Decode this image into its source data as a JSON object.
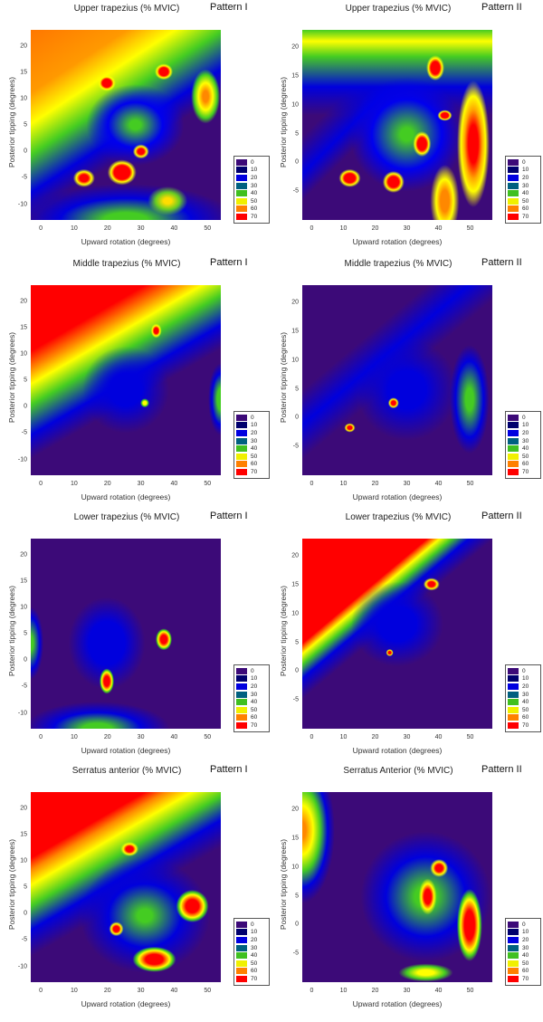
{
  "legend_levels": [
    "0",
    "10",
    "20",
    "30",
    "40",
    "50",
    "60",
    "70"
  ],
  "legend_colors": [
    "#3c0a78",
    "#00006e",
    "#0000e0",
    "#006080",
    "#40c020",
    "#f0f000",
    "#ff8000",
    "#ff0000"
  ],
  "chart_data": [
    {
      "type": "heatmap",
      "title": "Upper trapezius (% MVIC)",
      "pattern": "Pattern I",
      "xlabel": "Upward rotation (degrees)",
      "ylabel": "Posterior tipping (degrees)",
      "xticks": [
        "0",
        "10",
        "20",
        "30",
        "40",
        "50"
      ],
      "yticks": [
        "-10",
        "-5",
        "0",
        "5",
        "10",
        "15",
        "20"
      ],
      "xlim": [
        -3,
        54
      ],
      "ylim": [
        -13,
        23
      ],
      "zlevels": [
        0,
        10,
        20,
        30,
        40,
        50,
        60,
        70
      ]
    },
    {
      "type": "heatmap",
      "title": "Upper trapezius (% MVIC)",
      "pattern": "Pattern II",
      "xlabel": "Upward rotation (degrees)",
      "ylabel": "Posterior tipping (degrees)",
      "xticks": [
        "0",
        "10",
        "20",
        "30",
        "40",
        "50"
      ],
      "yticks": [
        "-5",
        "0",
        "5",
        "10",
        "15",
        "20"
      ],
      "xlim": [
        -3,
        57
      ],
      "ylim": [
        -10,
        23
      ],
      "zlevels": [
        0,
        10,
        20,
        30,
        40,
        50,
        60,
        70
      ]
    },
    {
      "type": "heatmap",
      "title": "Middle trapezius (% MVIC)",
      "pattern": "Pattern I",
      "xlabel": "Upward rotation (degrees)",
      "ylabel": "Posterior tipping (degrees)",
      "xticks": [
        "0",
        "10",
        "20",
        "30",
        "40",
        "50"
      ],
      "yticks": [
        "-10",
        "-5",
        "0",
        "5",
        "10",
        "15",
        "20"
      ],
      "xlim": [
        -3,
        54
      ],
      "ylim": [
        -13,
        23
      ],
      "zlevels": [
        0,
        10,
        20,
        30,
        40,
        50,
        60,
        70
      ]
    },
    {
      "type": "heatmap",
      "title": "Middle trapezius (% MVIC)",
      "pattern": "Pattern II",
      "xlabel": "Upward rotation (degrees)",
      "ylabel": "Posterior tipping (degrees)",
      "xticks": [
        "0",
        "10",
        "20",
        "30",
        "40",
        "50"
      ],
      "yticks": [
        "-5",
        "0",
        "5",
        "10",
        "15",
        "20"
      ],
      "xlim": [
        -3,
        57
      ],
      "ylim": [
        -10,
        23
      ],
      "zlevels": [
        0,
        10,
        20,
        30,
        40,
        50,
        60,
        70
      ]
    },
    {
      "type": "heatmap",
      "title": "Lower trapezius (% MVIC)",
      "pattern": "Pattern I",
      "xlabel": "Upward rotation (degrees)",
      "ylabel": "Posterior tipping (degrees)",
      "xticks": [
        "0",
        "10",
        "20",
        "30",
        "40",
        "50"
      ],
      "yticks": [
        "-10",
        "-5",
        "0",
        "5",
        "10",
        "15",
        "20"
      ],
      "xlim": [
        -3,
        54
      ],
      "ylim": [
        -13,
        23
      ],
      "zlevels": [
        0,
        10,
        20,
        30,
        40,
        50,
        60,
        70
      ]
    },
    {
      "type": "heatmap",
      "title": "Lower trapezius (% MVIC)",
      "pattern": "Pattern II",
      "xlabel": "Upward rotation (degrees)",
      "ylabel": "Posterior tipping (degrees)",
      "xticks": [
        "0",
        "10",
        "20",
        "30",
        "40",
        "50"
      ],
      "yticks": [
        "-5",
        "0",
        "5",
        "10",
        "15",
        "20"
      ],
      "xlim": [
        -3,
        57
      ],
      "ylim": [
        -10,
        23
      ],
      "zlevels": [
        0,
        10,
        20,
        30,
        40,
        50,
        60,
        70
      ]
    },
    {
      "type": "heatmap",
      "title": "Serratus anterior (% MVIC)",
      "pattern": "Pattern I",
      "xlabel": "Upward rotation (degrees)",
      "ylabel": "Posterior tipping (degrees)",
      "xticks": [
        "0",
        "10",
        "20",
        "30",
        "40",
        "50"
      ],
      "yticks": [
        "-10",
        "-5",
        "0",
        "5",
        "10",
        "15",
        "20"
      ],
      "xlim": [
        -3,
        54
      ],
      "ylim": [
        -13,
        23
      ],
      "zlevels": [
        0,
        10,
        20,
        30,
        40,
        50,
        60,
        70
      ]
    },
    {
      "type": "heatmap",
      "title": "Serratus Anterior (% MVIC)",
      "pattern": "Pattern II",
      "xlabel": "Upward rotation (degrees)",
      "ylabel": "Posterior tipping (degrees)",
      "xticks": [
        "0",
        "10",
        "20",
        "30",
        "40",
        "50"
      ],
      "yticks": [
        "-5",
        "0",
        "5",
        "10",
        "15",
        "20"
      ],
      "xlim": [
        -3,
        57
      ],
      "ylim": [
        -10,
        23
      ],
      "zlevels": [
        0,
        10,
        20,
        30,
        40,
        50,
        60,
        70
      ]
    }
  ]
}
